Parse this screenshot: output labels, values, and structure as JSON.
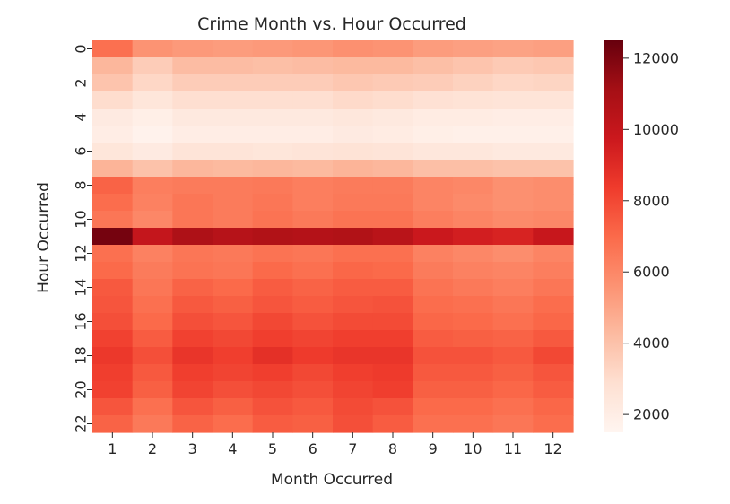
{
  "chart_data": {
    "type": "heatmap",
    "title": "Crime Month vs. Hour Occurred",
    "xlabel": "Month Occurred",
    "ylabel": "Hour Occurred",
    "x": [
      1,
      2,
      3,
      4,
      5,
      6,
      7,
      8,
      9,
      10,
      11,
      12
    ],
    "y": [
      0,
      1,
      2,
      3,
      4,
      5,
      6,
      7,
      8,
      9,
      10,
      11,
      12,
      13,
      14,
      15,
      16,
      17,
      18,
      19,
      20,
      21,
      22
    ],
    "xticklabels": [
      "1",
      "2",
      "3",
      "4",
      "5",
      "6",
      "7",
      "8",
      "9",
      "10",
      "11",
      "12"
    ],
    "yticklabels": [
      "0",
      "2",
      "4",
      "6",
      "8",
      "10",
      "12",
      "14",
      "16",
      "18",
      "20",
      "22"
    ],
    "ytick_values": [
      0,
      2,
      4,
      6,
      8,
      10,
      12,
      14,
      16,
      18,
      20,
      22
    ],
    "colorbar": {
      "min": 1500,
      "max": 12500,
      "ticks": [
        2000,
        4000,
        6000,
        8000,
        10000,
        12000
      ],
      "ticklabels": [
        "2000",
        "4000",
        "6000",
        "8000",
        "10000",
        "12000"
      ],
      "colormap": "Reds",
      "colors": [
        "#fff5f0",
        "#fee0d2",
        "#fcbba1",
        "#fc9272",
        "#fb6a4a",
        "#ef3b2c",
        "#cb181d",
        "#a50f15",
        "#67000d"
      ]
    },
    "values": [
      [
        6800,
        5600,
        5400,
        5300,
        5400,
        5500,
        5700,
        5600,
        5300,
        5200,
        5100,
        5200
      ],
      [
        4400,
        3600,
        4200,
        4200,
        4100,
        4200,
        4300,
        4300,
        4100,
        3900,
        3700,
        3800
      ],
      [
        3900,
        3200,
        3600,
        3600,
        3600,
        3600,
        3800,
        3700,
        3600,
        3400,
        3200,
        3300
      ],
      [
        3000,
        2500,
        2900,
        2900,
        2900,
        2900,
        3100,
        3000,
        2800,
        2700,
        2600,
        2600
      ],
      [
        2200,
        1900,
        2300,
        2300,
        2300,
        2300,
        2400,
        2300,
        2100,
        2100,
        2000,
        2000
      ],
      [
        2000,
        1700,
        2000,
        2000,
        2000,
        2000,
        2200,
        2100,
        1900,
        1800,
        1800,
        1800
      ],
      [
        2500,
        2200,
        2600,
        2600,
        2500,
        2600,
        2700,
        2600,
        2400,
        2400,
        2300,
        2300
      ],
      [
        4500,
        4000,
        4400,
        4300,
        4400,
        4300,
        4500,
        4400,
        4100,
        4100,
        4000,
        4000
      ],
      [
        7200,
        6300,
        6400,
        6400,
        6500,
        6300,
        6400,
        6400,
        6100,
        6000,
        5700,
        5800
      ],
      [
        6900,
        6200,
        6600,
        6400,
        6600,
        6300,
        6500,
        6500,
        6100,
        5900,
        5700,
        5800
      ],
      [
        6600,
        6000,
        6600,
        6400,
        6700,
        6500,
        6700,
        6700,
        6300,
        6100,
        5900,
        6000
      ],
      [
        12200,
        10000,
        10800,
        10500,
        10700,
        10600,
        10700,
        10400,
        9800,
        9500,
        9300,
        9900
      ],
      [
        6800,
        6200,
        6600,
        6500,
        6700,
        6600,
        6800,
        6800,
        6200,
        6000,
        5800,
        6100
      ],
      [
        7000,
        6400,
        6700,
        6600,
        7000,
        6800,
        7100,
        7000,
        6400,
        6200,
        6100,
        6300
      ],
      [
        7500,
        6600,
        7200,
        7000,
        7400,
        7200,
        7400,
        7400,
        6700,
        6500,
        6300,
        6600
      ],
      [
        7600,
        6800,
        7500,
        7300,
        7600,
        7400,
        7600,
        7700,
        6900,
        6800,
        6600,
        6900
      ],
      [
        7800,
        7000,
        7800,
        7600,
        8000,
        7700,
        7900,
        7900,
        7100,
        7000,
        6800,
        7100
      ],
      [
        8200,
        7400,
        8200,
        8000,
        8300,
        8100,
        8300,
        8300,
        7400,
        7300,
        7200,
        7500
      ],
      [
        8500,
        7800,
        8600,
        8300,
        8800,
        8400,
        8600,
        8600,
        7700,
        7700,
        7500,
        8000
      ],
      [
        8300,
        7500,
        8300,
        8100,
        8300,
        8000,
        8300,
        8400,
        7500,
        7500,
        7300,
        7600
      ],
      [
        8200,
        7300,
        8100,
        7800,
        8000,
        7800,
        8100,
        8300,
        7300,
        7300,
        7100,
        7400
      ],
      [
        7600,
        6800,
        7600,
        7300,
        7700,
        7500,
        7900,
        7700,
        7000,
        7000,
        6800,
        7100
      ],
      [
        7200,
        6500,
        7200,
        6900,
        7400,
        7300,
        7800,
        7400,
        6800,
        6800,
        6600,
        6900
      ]
    ]
  }
}
